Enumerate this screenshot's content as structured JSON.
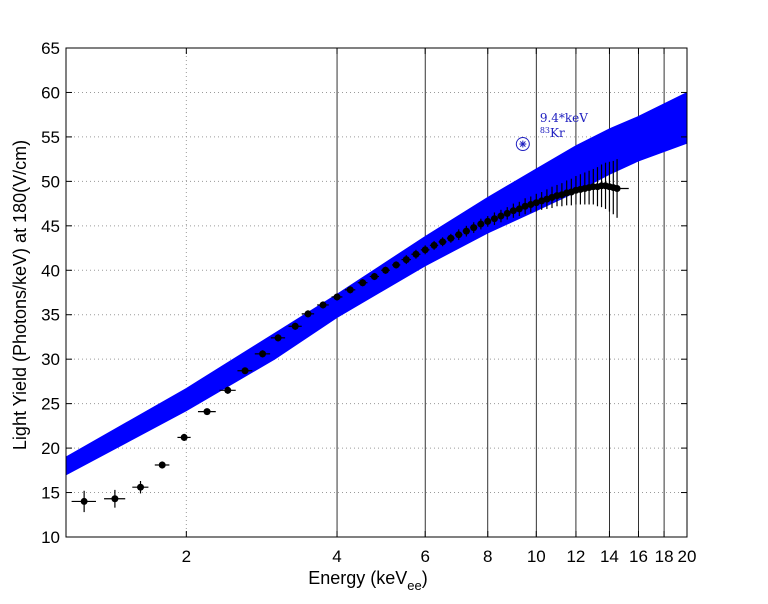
{
  "chart_data": {
    "type": "scatter",
    "xscale": "log",
    "x_tick_values": [
      2,
      4,
      6,
      8,
      10,
      12,
      14,
      16,
      18,
      20
    ],
    "x_tick_labels": [
      "2",
      "4",
      "6",
      "8",
      "10",
      "12",
      "14",
      "16",
      "18",
      "20"
    ],
    "y_tick_values": [
      10,
      15,
      20,
      25,
      30,
      35,
      40,
      45,
      50,
      55,
      60,
      65
    ],
    "y_tick_labels": [
      "10",
      "15",
      "20",
      "25",
      "30",
      "35",
      "40",
      "45",
      "50",
      "55",
      "60",
      "65"
    ],
    "xlim": [
      1.15,
      20
    ],
    "ylim": [
      10,
      65
    ],
    "xlabel_main": "Energy (keV",
    "xlabel_sub": "ee",
    "xlabel_close": ")",
    "ylabel": "Light Yield (Photons/keV) at 180(V/cm)",
    "grid": "dotted",
    "band": {
      "color": "#0000ff",
      "x": [
        1.15,
        2.0,
        3.0,
        4.0,
        6.0,
        8.0,
        10.0,
        12.0,
        14.0,
        16.0,
        20.0
      ],
      "upper": [
        19.0,
        26.7,
        32.9,
        37.3,
        43.8,
        48.2,
        51.4,
        54.0,
        55.9,
        57.3,
        60.0
      ],
      "lower": [
        17.0,
        24.2,
        30.0,
        34.7,
        40.5,
        44.2,
        46.7,
        48.8,
        50.8,
        52.3,
        54.3
      ]
    },
    "data_points": {
      "color": "#000000",
      "x": [
        1.25,
        1.44,
        1.62,
        1.79,
        1.98,
        2.2,
        2.42,
        2.62,
        2.84,
        3.05,
        3.3,
        3.5,
        3.75,
        4.0,
        4.25,
        4.5,
        4.75,
        5.0,
        5.25,
        5.5,
        5.75,
        6.0,
        6.25,
        6.5,
        6.75,
        7.0,
        7.25,
        7.5,
        7.75,
        8.0,
        8.25,
        8.5,
        8.75,
        9.0,
        9.25,
        9.5,
        9.75,
        10.0,
        10.25,
        10.5,
        10.75,
        11.0,
        11.25,
        11.5,
        11.75,
        12.0,
        12.25,
        12.5,
        12.75,
        13.0,
        13.25,
        13.5,
        13.75,
        14.0,
        14.25,
        14.5
      ],
      "y": [
        14.0,
        14.3,
        15.6,
        18.1,
        21.2,
        24.1,
        26.5,
        28.7,
        30.6,
        32.4,
        33.7,
        35.1,
        36.1,
        37.0,
        37.8,
        38.6,
        39.3,
        40.0,
        40.6,
        41.2,
        41.8,
        42.3,
        42.8,
        43.2,
        43.6,
        44.0,
        44.4,
        44.8,
        45.2,
        45.5,
        45.8,
        46.1,
        46.4,
        46.7,
        46.9,
        47.2,
        47.4,
        47.6,
        47.8,
        48.0,
        48.2,
        48.4,
        48.5,
        48.7,
        48.8,
        49.0,
        49.1,
        49.2,
        49.3,
        49.4,
        49.4,
        49.5,
        49.5,
        49.4,
        49.3,
        49.2
      ],
      "yerr": [
        1.2,
        1.0,
        0.7,
        0.4,
        0.4,
        0.3,
        0.4,
        0.3,
        0.4,
        0.4,
        0.4,
        0.4,
        0.4,
        0.4,
        0.4,
        0.4,
        0.4,
        0.4,
        0.4,
        0.5,
        0.5,
        0.5,
        0.5,
        0.5,
        0.5,
        0.6,
        0.6,
        0.6,
        0.6,
        0.6,
        0.7,
        0.7,
        0.7,
        0.8,
        0.8,
        0.9,
        0.9,
        1.0,
        1.0,
        1.1,
        1.2,
        1.2,
        1.3,
        1.4,
        1.5,
        1.6,
        1.7,
        1.8,
        1.9,
        2.0,
        2.2,
        2.4,
        2.6,
        2.8,
        3.0,
        3.3
      ],
      "xerr": [
        0.07,
        0.07,
        0.06,
        0.06,
        0.06,
        0.09,
        0.09,
        0.09,
        0.1,
        0.1,
        0.1,
        0.1,
        0.1,
        0.1,
        0.1,
        0.1,
        0.1,
        0.1,
        0.1,
        0.12,
        0.12,
        0.12,
        0.12,
        0.12,
        0.12,
        0.12,
        0.12,
        0.12,
        0.12,
        0.12,
        0.12,
        0.12,
        0.12,
        0.12,
        0.12,
        0.12,
        0.12,
        0.12,
        0.12,
        0.12,
        0.12,
        0.12,
        0.12,
        0.12,
        0.12,
        0.12,
        0.12,
        0.12,
        0.12,
        0.12,
        0.12,
        0.12,
        0.12,
        0.12,
        0.3,
        0.8
      ]
    },
    "kr_point": {
      "x": 9.4,
      "y": 54.2,
      "color": "#2020c0",
      "label_line1": "9.4*keV",
      "label_sup": "83",
      "label_line2": "Kr"
    }
  }
}
